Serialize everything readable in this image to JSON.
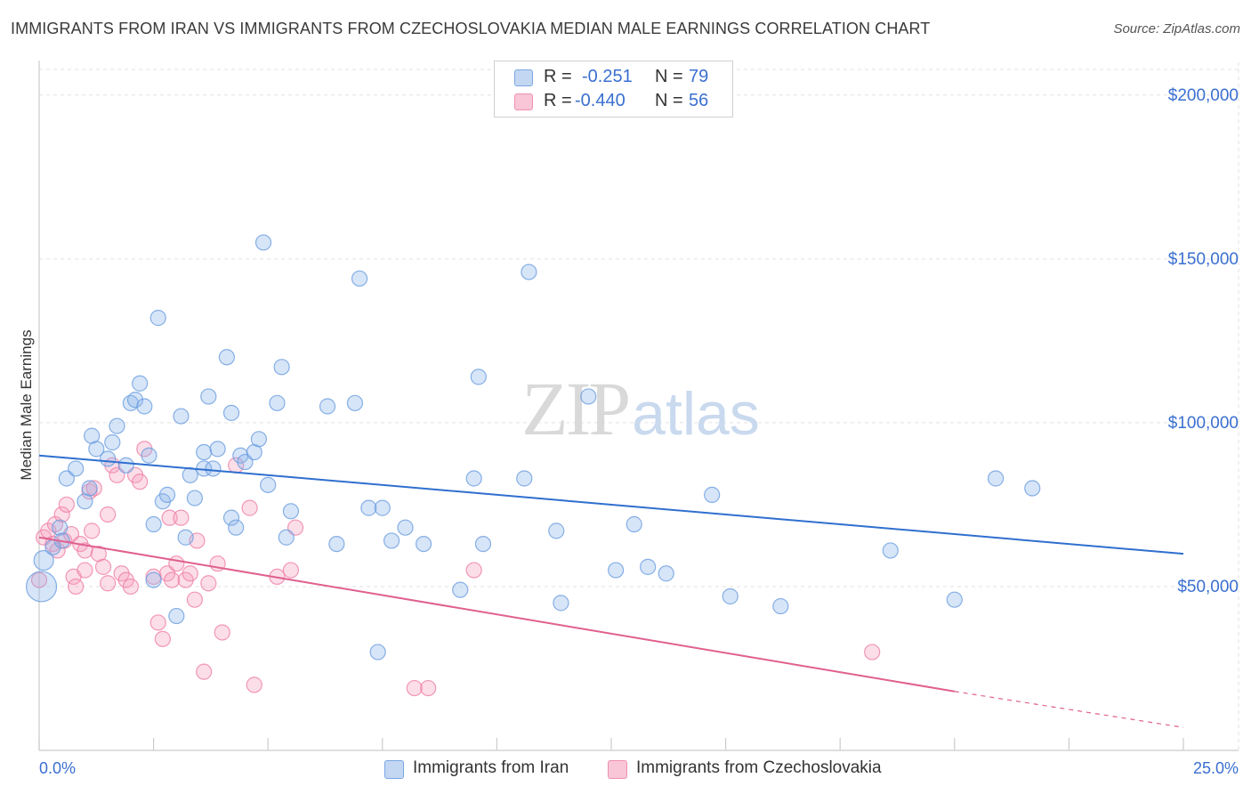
{
  "title": "IMMIGRANTS FROM IRAN VS IMMIGRANTS FROM CZECHOSLOVAKIA MEDIAN MALE EARNINGS CORRELATION CHART",
  "source": "Source: ZipAtlas.com",
  "watermark": "ZIPatlas",
  "colors": {
    "iran": "#6a9ee0",
    "czech": "#ef7fa6",
    "iran_line": "#2f6fcf",
    "czech_line": "#e0608f",
    "axis_text": "#3a6fd0"
  },
  "legend": {
    "rows": [
      {
        "r_key": "R =",
        "r_val": "-0.251",
        "n_key": "N =",
        "n_val": "79"
      },
      {
        "r_key": "R =",
        "r_val": "-0.440",
        "n_key": "N =",
        "n_val": "56"
      }
    ]
  },
  "bottom_legend": {
    "iran": "Immigrants from Iran",
    "czech": "Immigrants from Czechoslovakia"
  },
  "chart_data": {
    "type": "scatter",
    "title": "IMMIGRANTS FROM IRAN VS IMMIGRANTS FROM CZECHOSLOVAKIA MEDIAN MALE EARNINGS CORRELATION CHART",
    "xlabel": "",
    "ylabel": "Median Male Earnings",
    "xlim": [
      0,
      25
    ],
    "ylim": [
      0,
      210000
    ],
    "x_tick_labels": [
      "0.0%",
      "25.0%"
    ],
    "y_ticks": [
      50000,
      100000,
      150000,
      200000
    ],
    "y_tick_labels": [
      "$50,000",
      "$100,000",
      "$150,000",
      "$200,000"
    ],
    "grid": true,
    "legend_position": "top-center",
    "series": [
      {
        "name": "Immigrants from Iran",
        "r": -0.251,
        "n": 79,
        "trend": {
          "x": [
            0,
            25
          ],
          "y": [
            90000,
            60000
          ]
        },
        "points": [
          [
            0.05,
            50000
          ],
          [
            0.1,
            58000
          ],
          [
            0.3,
            62000
          ],
          [
            0.45,
            68000
          ],
          [
            0.6,
            83000
          ],
          [
            0.8,
            86000
          ],
          [
            1.0,
            76000
          ],
          [
            1.1,
            80000
          ],
          [
            1.15,
            96000
          ],
          [
            1.25,
            92000
          ],
          [
            1.5,
            89000
          ],
          [
            1.6,
            94000
          ],
          [
            1.7,
            99000
          ],
          [
            1.9,
            87000
          ],
          [
            2.0,
            106000
          ],
          [
            2.1,
            107000
          ],
          [
            2.2,
            112000
          ],
          [
            2.3,
            105000
          ],
          [
            2.4,
            90000
          ],
          [
            2.5,
            69000
          ],
          [
            2.5,
            52000
          ],
          [
            2.6,
            132000
          ],
          [
            2.7,
            76000
          ],
          [
            2.8,
            78000
          ],
          [
            3.0,
            41000
          ],
          [
            3.1,
            102000
          ],
          [
            3.2,
            65000
          ],
          [
            3.3,
            84000
          ],
          [
            3.4,
            77000
          ],
          [
            3.6,
            91000
          ],
          [
            3.6,
            86000
          ],
          [
            3.7,
            108000
          ],
          [
            3.8,
            86000
          ],
          [
            3.9,
            92000
          ],
          [
            4.1,
            120000
          ],
          [
            4.2,
            103000
          ],
          [
            4.2,
            71000
          ],
          [
            4.3,
            68000
          ],
          [
            4.4,
            90000
          ],
          [
            4.5,
            88000
          ],
          [
            4.7,
            91000
          ],
          [
            4.8,
            95000
          ],
          [
            4.9,
            155000
          ],
          [
            5.0,
            81000
          ],
          [
            5.2,
            106000
          ],
          [
            5.3,
            117000
          ],
          [
            5.4,
            65000
          ],
          [
            5.5,
            73000
          ],
          [
            6.3,
            105000
          ],
          [
            6.5,
            63000
          ],
          [
            6.9,
            106000
          ],
          [
            7.0,
            144000
          ],
          [
            7.2,
            74000
          ],
          [
            7.4,
            30000
          ],
          [
            7.5,
            74000
          ],
          [
            7.7,
            64000
          ],
          [
            8.0,
            68000
          ],
          [
            8.4,
            63000
          ],
          [
            9.2,
            49000
          ],
          [
            9.5,
            83000
          ],
          [
            9.6,
            114000
          ],
          [
            9.7,
            63000
          ],
          [
            10.6,
            83000
          ],
          [
            10.7,
            146000
          ],
          [
            11.3,
            67000
          ],
          [
            11.4,
            45000
          ],
          [
            12.0,
            108000
          ],
          [
            12.6,
            55000
          ],
          [
            13.0,
            69000
          ],
          [
            13.3,
            56000
          ],
          [
            13.7,
            54000
          ],
          [
            14.7,
            78000
          ],
          [
            15.1,
            47000
          ],
          [
            16.2,
            44000
          ],
          [
            18.6,
            61000
          ],
          [
            20.0,
            46000
          ],
          [
            20.9,
            83000
          ],
          [
            21.7,
            80000
          ],
          [
            0.5,
            64000
          ]
        ]
      },
      {
        "name": "Immigrants from Czechoslovakia",
        "r": -0.44,
        "n": 56,
        "trend": {
          "x": [
            0,
            20,
            25
          ],
          "y": [
            65000,
            18000,
            7000
          ]
        },
        "points": [
          [
            0.0,
            52000
          ],
          [
            0.1,
            65000
          ],
          [
            0.2,
            67000
          ],
          [
            0.3,
            63000
          ],
          [
            0.35,
            69000
          ],
          [
            0.4,
            61000
          ],
          [
            0.5,
            72000
          ],
          [
            0.55,
            64000
          ],
          [
            0.6,
            75000
          ],
          [
            0.7,
            66000
          ],
          [
            0.75,
            53000
          ],
          [
            0.8,
            50000
          ],
          [
            0.9,
            63000
          ],
          [
            1.0,
            61000
          ],
          [
            1.0,
            55000
          ],
          [
            1.1,
            79000
          ],
          [
            1.15,
            67000
          ],
          [
            1.2,
            80000
          ],
          [
            1.3,
            60000
          ],
          [
            1.4,
            56000
          ],
          [
            1.5,
            51000
          ],
          [
            1.5,
            72000
          ],
          [
            1.6,
            87000
          ],
          [
            1.7,
            84000
          ],
          [
            1.8,
            54000
          ],
          [
            1.9,
            52000
          ],
          [
            2.0,
            50000
          ],
          [
            2.1,
            84000
          ],
          [
            2.2,
            82000
          ],
          [
            2.3,
            92000
          ],
          [
            2.5,
            53000
          ],
          [
            2.6,
            39000
          ],
          [
            2.7,
            34000
          ],
          [
            2.8,
            54000
          ],
          [
            2.85,
            71000
          ],
          [
            2.9,
            52000
          ],
          [
            3.0,
            57000
          ],
          [
            3.1,
            71000
          ],
          [
            3.2,
            52000
          ],
          [
            3.3,
            54000
          ],
          [
            3.4,
            46000
          ],
          [
            3.45,
            64000
          ],
          [
            3.6,
            24000
          ],
          [
            3.7,
            51000
          ],
          [
            3.9,
            57000
          ],
          [
            4.0,
            36000
          ],
          [
            4.3,
            87000
          ],
          [
            4.6,
            74000
          ],
          [
            4.7,
            20000
          ],
          [
            5.2,
            53000
          ],
          [
            5.5,
            55000
          ],
          [
            5.6,
            68000
          ],
          [
            8.2,
            19000
          ],
          [
            8.5,
            19000
          ],
          [
            9.5,
            55000
          ],
          [
            18.2,
            30000
          ]
        ]
      }
    ]
  }
}
